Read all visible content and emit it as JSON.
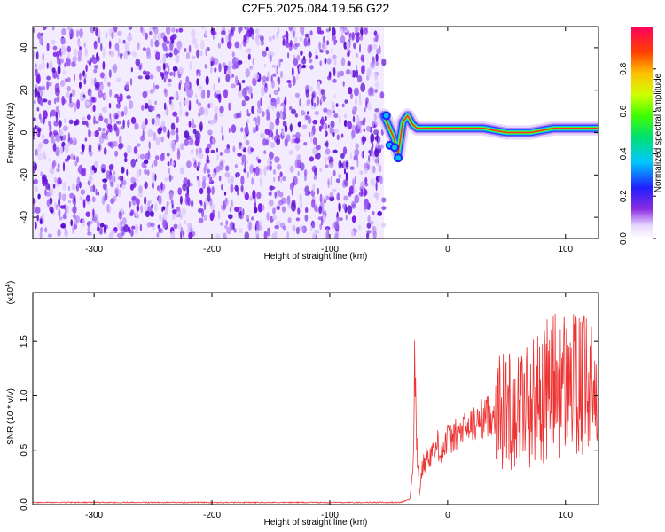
{
  "figure_title": "C2E5.2025.084.19.56.G22",
  "chart_data": [
    {
      "type": "heatmap",
      "title": "",
      "xlabel": "Height of straight line (km)",
      "ylabel": "Frequency (Hz)",
      "xlim": [
        -352,
        128
      ],
      "ylim": [
        -50,
        50
      ],
      "xticks": [
        "-300",
        "-200",
        "-100",
        "0",
        "100"
      ],
      "xtick_values": [
        -300,
        -200,
        -100,
        0,
        100
      ],
      "yticks": [
        "-40",
        "-20",
        "0",
        "20",
        "40"
      ],
      "ytick_values": [
        -40,
        -20,
        0,
        20,
        40
      ],
      "noise_region_x": [
        -352,
        -54
      ],
      "signal_trace": {
        "x": [
          -54,
          -50,
          -46,
          -42,
          -38,
          -34,
          -30,
          -26,
          -20,
          -10,
          0,
          10,
          20,
          30,
          40,
          50,
          60,
          70,
          80,
          90,
          100,
          110,
          120,
          128
        ],
        "y": [
          8,
          3,
          -2,
          -10,
          5,
          8,
          4,
          2,
          2,
          2,
          2,
          2,
          2,
          2,
          1,
          0,
          0,
          0,
          1,
          2,
          2,
          2,
          2,
          2
        ]
      },
      "colorbar": {
        "label": "Normalized spectral amplitude",
        "range": [
          0,
          1
        ],
        "ticks": [
          "0.0",
          "0.2",
          "0.4",
          "0.6",
          "0.8"
        ],
        "tick_values": [
          0,
          0.2,
          0.4,
          0.6,
          0.8
        ]
      }
    },
    {
      "type": "line",
      "title": "",
      "xlabel": "Height of straight line (km)",
      "ylabel": "SNR (10 * v/v)",
      "y_multiplier": "(x10",
      "y_multiplier_exp": "4",
      "y_multiplier_close": ")",
      "xlim": [
        -352,
        128
      ],
      "ylim": [
        0,
        1.95
      ],
      "xticks": [
        "-300",
        "-200",
        "-100",
        "0",
        "100"
      ],
      "xtick_values": [
        -300,
        -200,
        -100,
        0,
        100
      ],
      "yticks": [
        "0.0",
        "0.5",
        "1.0",
        "1.5"
      ],
      "ytick_values": [
        0,
        0.5,
        1.0,
        1.5
      ],
      "series": [
        {
          "color": "#ee3333",
          "x": [
            -352,
            -200,
            -100,
            -40,
            -32,
            -29,
            -28,
            -26,
            -24,
            -22,
            -20,
            -16,
            -12,
            -8,
            -4,
            0,
            5,
            10,
            15,
            20,
            25,
            30,
            35,
            40,
            45,
            50,
            55,
            60,
            65,
            70,
            75,
            80,
            85,
            90,
            95,
            100,
            105,
            110,
            115,
            120,
            124,
            128
          ],
          "y": [
            0.02,
            0.02,
            0.02,
            0.02,
            0.05,
            0.4,
            1.3,
            0.5,
            0.1,
            0.3,
            0.4,
            0.45,
            0.5,
            0.55,
            0.5,
            0.6,
            0.62,
            0.66,
            0.7,
            0.72,
            0.76,
            0.8,
            0.82,
            0.84,
            0.86,
            0.88,
            0.88,
            0.9,
            0.92,
            0.94,
            0.98,
            1.0,
            1.05,
            1.1,
            1.12,
            1.1,
            1.15,
            1.05,
            1.1,
            1.0,
            1.1,
            1.05
          ]
        }
      ]
    }
  ]
}
